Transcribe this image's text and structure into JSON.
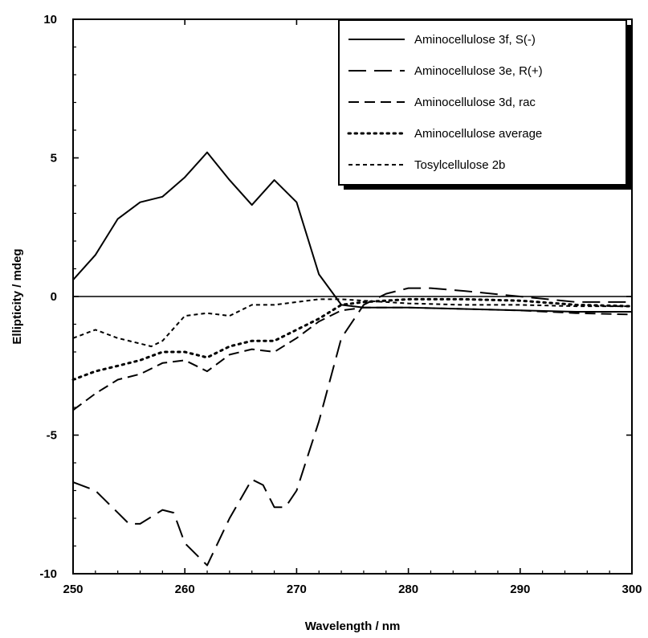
{
  "chart_data": {
    "type": "line",
    "title": "",
    "xlabel": "Wavelength / nm",
    "ylabel": "Ellipticity / mdeg",
    "xlim": [
      250,
      300
    ],
    "ylim": [
      -10,
      10
    ],
    "xticks": [
      250,
      260,
      270,
      280,
      290,
      300
    ],
    "yticks": [
      -10,
      -5,
      0,
      5,
      10
    ],
    "xtick_labels": [
      "250",
      "260",
      "270",
      "280",
      "290",
      "300"
    ],
    "ytick_labels": [
      "-10",
      "-5",
      "0",
      "5",
      "10"
    ],
    "grid": false,
    "zero_line": true,
    "legend_position": "top-right",
    "series": [
      {
        "name": "Aminocellulose 3f, S(-)",
        "dash": "solid",
        "x": [
          250,
          252,
          254,
          256,
          258,
          260,
          262,
          264,
          266,
          268,
          270,
          272,
          274,
          276,
          278,
          280,
          285,
          290,
          295,
          300
        ],
        "y": [
          0.6,
          1.5,
          2.8,
          3.4,
          3.6,
          4.3,
          5.2,
          4.2,
          3.3,
          4.2,
          3.4,
          0.8,
          -0.3,
          -0.4,
          -0.4,
          -0.4,
          -0.45,
          -0.5,
          -0.55,
          -0.55
        ]
      },
      {
        "name": "Aminocellulose 3e, R(+)",
        "dash": "long-dash",
        "x": [
          250,
          252,
          254,
          255,
          256,
          258,
          259,
          260,
          262,
          264,
          266,
          267,
          268,
          269,
          270,
          272,
          274,
          276,
          278,
          280,
          282,
          285,
          290,
          295,
          300
        ],
        "y": [
          -6.7,
          -7.0,
          -7.8,
          -8.2,
          -8.2,
          -7.7,
          -7.8,
          -8.9,
          -9.7,
          -8.0,
          -6.6,
          -6.8,
          -7.6,
          -7.6,
          -7.0,
          -4.5,
          -1.5,
          -0.3,
          0.1,
          0.3,
          0.3,
          0.2,
          0.0,
          -0.2,
          -0.2
        ]
      },
      {
        "name": "Aminocellulose 3d, rac",
        "dash": "dash",
        "x": [
          250,
          252,
          254,
          256,
          258,
          260,
          262,
          264,
          266,
          268,
          270,
          272,
          274,
          276,
          278,
          280,
          285,
          290,
          295,
          300
        ],
        "y": [
          -4.1,
          -3.5,
          -3.0,
          -2.8,
          -2.4,
          -2.3,
          -2.7,
          -2.1,
          -1.9,
          -2.0,
          -1.5,
          -0.9,
          -0.5,
          -0.4,
          -0.4,
          -0.4,
          -0.45,
          -0.5,
          -0.6,
          -0.65
        ]
      },
      {
        "name": "Aminocellulose average",
        "dash": "dot",
        "x": [
          250,
          252,
          254,
          256,
          258,
          260,
          262,
          264,
          266,
          268,
          270,
          272,
          274,
          276,
          278,
          280,
          285,
          290,
          295,
          300
        ],
        "y": [
          -3.0,
          -2.7,
          -2.5,
          -2.3,
          -2.0,
          -2.0,
          -2.2,
          -1.8,
          -1.6,
          -1.6,
          -1.2,
          -0.8,
          -0.3,
          -0.2,
          -0.15,
          -0.1,
          -0.1,
          -0.15,
          -0.3,
          -0.35
        ]
      },
      {
        "name": "Tosylcellulose  2b",
        "dash": "short-dash",
        "x": [
          250,
          252,
          254,
          256,
          257,
          258,
          260,
          262,
          264,
          266,
          268,
          270,
          272,
          274,
          276,
          278,
          280,
          285,
          290,
          295,
          300
        ],
        "y": [
          -1.5,
          -1.2,
          -1.5,
          -1.7,
          -1.8,
          -1.6,
          -0.7,
          -0.6,
          -0.7,
          -0.3,
          -0.3,
          -0.2,
          -0.1,
          -0.1,
          -0.15,
          -0.2,
          -0.25,
          -0.3,
          -0.3,
          -0.35,
          -0.35
        ]
      }
    ]
  }
}
